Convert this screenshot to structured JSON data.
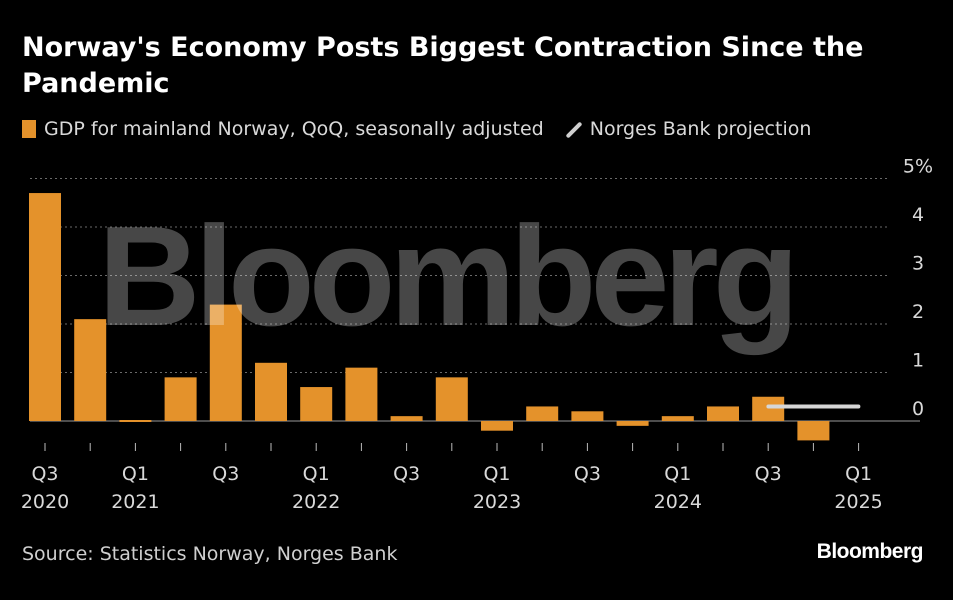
{
  "title": "Norway's Economy Posts Biggest Contraction Since the Pandemic",
  "legend": {
    "bar_label": "GDP for mainland Norway, QoQ, seasonally adjusted",
    "line_label": "Norges Bank projection"
  },
  "source": "Source: Statistics Norway, Norges Bank",
  "brand": "Bloomberg",
  "watermark": "Bloomberg",
  "colors": {
    "bar": "#e4922b",
    "projection": "#d6d6d6",
    "grid": "#6a6a6a",
    "background": "#000000"
  },
  "chart_data": {
    "type": "bar",
    "categories": [
      "Q3 2020",
      "Q4 2020",
      "Q1 2021",
      "Q2 2021",
      "Q3 2021",
      "Q4 2021",
      "Q1 2022",
      "Q2 2022",
      "Q3 2022",
      "Q4 2022",
      "Q1 2023",
      "Q2 2023",
      "Q3 2023",
      "Q4 2023",
      "Q1 2024",
      "Q2 2024",
      "Q3 2024",
      "Q4 2024",
      "Q1 2025"
    ],
    "values": [
      4.7,
      2.1,
      0.0,
      0.9,
      2.4,
      1.2,
      0.7,
      1.1,
      0.1,
      0.9,
      -0.2,
      0.3,
      0.2,
      -0.1,
      0.1,
      0.3,
      0.5,
      -0.4,
      null
    ],
    "projection": {
      "category": "Q4 2024",
      "value": 0.3
    },
    "y_ticks": [
      "5%",
      "4",
      "3",
      "2",
      "1",
      "0"
    ],
    "ylim": [
      -0.4,
      5
    ],
    "x_tick_labels": [
      {
        "category": "Q3 2020",
        "q": "Q3",
        "year": "2020"
      },
      {
        "category": "Q1 2021",
        "q": "Q1",
        "year": "2021"
      },
      {
        "category": "Q3 2021",
        "q": "Q3",
        "year": ""
      },
      {
        "category": "Q1 2022",
        "q": "Q1",
        "year": "2022"
      },
      {
        "category": "Q3 2022",
        "q": "Q3",
        "year": ""
      },
      {
        "category": "Q1 2023",
        "q": "Q1",
        "year": "2023"
      },
      {
        "category": "Q3 2023",
        "q": "Q3",
        "year": ""
      },
      {
        "category": "Q1 2024",
        "q": "Q1",
        "year": "2024"
      },
      {
        "category": "Q3 2024",
        "q": "Q3",
        "year": ""
      },
      {
        "category": "Q1 2025",
        "q": "Q1",
        "year": "2025"
      }
    ],
    "grid": true,
    "legend_position": "top-left"
  }
}
